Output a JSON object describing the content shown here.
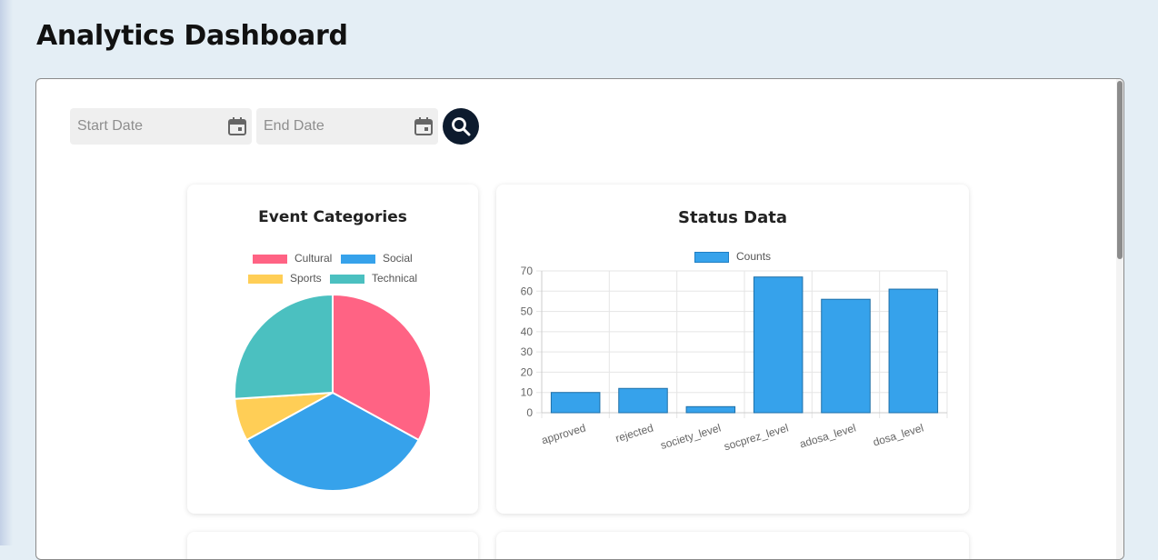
{
  "page": {
    "title": "Analytics Dashboard"
  },
  "filters": {
    "start_date_placeholder": "Start Date",
    "end_date_placeholder": "End Date"
  },
  "colors": {
    "cultural": "#ff6384",
    "social": "#36a2eb",
    "sports": "#ffce56",
    "technical": "#4bc0c0",
    "bar_fill": "#36a2eb",
    "search_button": "#0d1b2e"
  },
  "icons": {
    "calendar": "calendar-icon",
    "search": "search-icon"
  },
  "chart_data": [
    {
      "type": "pie",
      "title": "Event Categories",
      "legend_position": "top",
      "categories": [
        "Cultural",
        "Social",
        "Sports",
        "Technical"
      ],
      "values": [
        33,
        34,
        7,
        26
      ]
    },
    {
      "type": "bar",
      "title": "Status Data",
      "legend_position": "top",
      "categories": [
        "approved",
        "rejected",
        "society_level",
        "socprez_level",
        "adosa_level",
        "dosa_level"
      ],
      "series": [
        {
          "name": "Counts",
          "values": [
            10,
            12,
            3,
            67,
            56,
            61
          ]
        }
      ],
      "ylim": [
        0,
        70
      ],
      "yticks": [
        "70",
        "60",
        "50",
        "40",
        "30",
        "20",
        "10",
        "0"
      ],
      "grid": true
    }
  ]
}
